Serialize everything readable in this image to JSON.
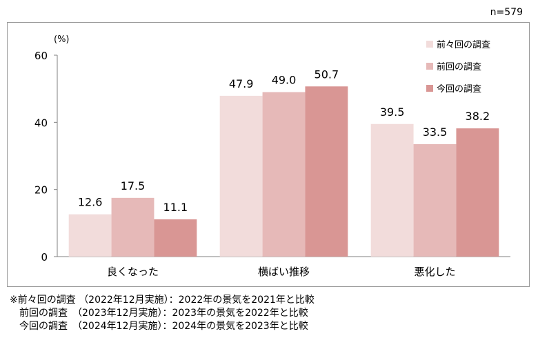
{
  "sample_size": "n=579",
  "notes": [
    "※前々回の調査 （2022年12月実施）：2022年の景気を2021年と比較",
    "　前回の調査　（2023年12月実施）：2023年の景気を2022年と比較",
    "　今回の調査　（2024年12月実施）：2024年の景気を2023年と比較"
  ],
  "chart_data": {
    "type": "bar",
    "unit_label": "(%)",
    "categories": [
      "良くなった",
      "横ばい推移",
      "悪化した"
    ],
    "series": [
      {
        "name": "前々回の調査",
        "color": "#f2dcdb",
        "values": [
          12.6,
          47.9,
          39.5
        ]
      },
      {
        "name": "前回の調査",
        "color": "#e6b9b8",
        "values": [
          17.5,
          49.0,
          33.5
        ]
      },
      {
        "name": "今回の調査",
        "color": "#d99694",
        "values": [
          11.1,
          50.7,
          38.2
        ]
      }
    ],
    "ylim": [
      0,
      60
    ],
    "yticks": [
      0,
      20,
      40,
      60
    ],
    "grid": false,
    "legend_position": "top-right"
  }
}
